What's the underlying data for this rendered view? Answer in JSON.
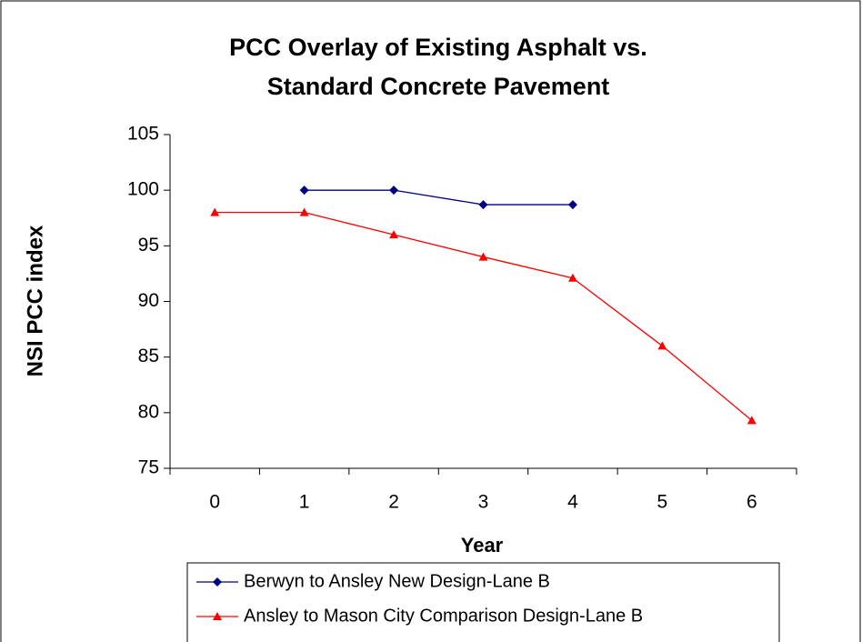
{
  "chart_data": {
    "type": "line",
    "title": [
      "PCC Overlay of Existing Asphalt vs.",
      "Standard Concrete Pavement"
    ],
    "x_label": "Year",
    "y_label": "NSI PCC index",
    "categories": [
      "0",
      "1",
      "2",
      "3",
      "4",
      "5",
      "6"
    ],
    "series": [
      {
        "name": "Berwyn to Ansley New Design-Lane B",
        "color": "#000080",
        "marker": "diamond",
        "values": [
          null,
          100,
          100,
          98.7,
          98.7,
          null,
          null
        ]
      },
      {
        "name": "Ansley to Mason City Comparison Design-Lane B",
        "color": "#ff0000",
        "marker": "triangle",
        "values": [
          98,
          98,
          96,
          94,
          92.1,
          86,
          79.3
        ]
      }
    ],
    "ylim": [
      75,
      105
    ],
    "yticks": [
      75,
      80,
      85,
      90,
      95,
      100,
      105
    ]
  }
}
